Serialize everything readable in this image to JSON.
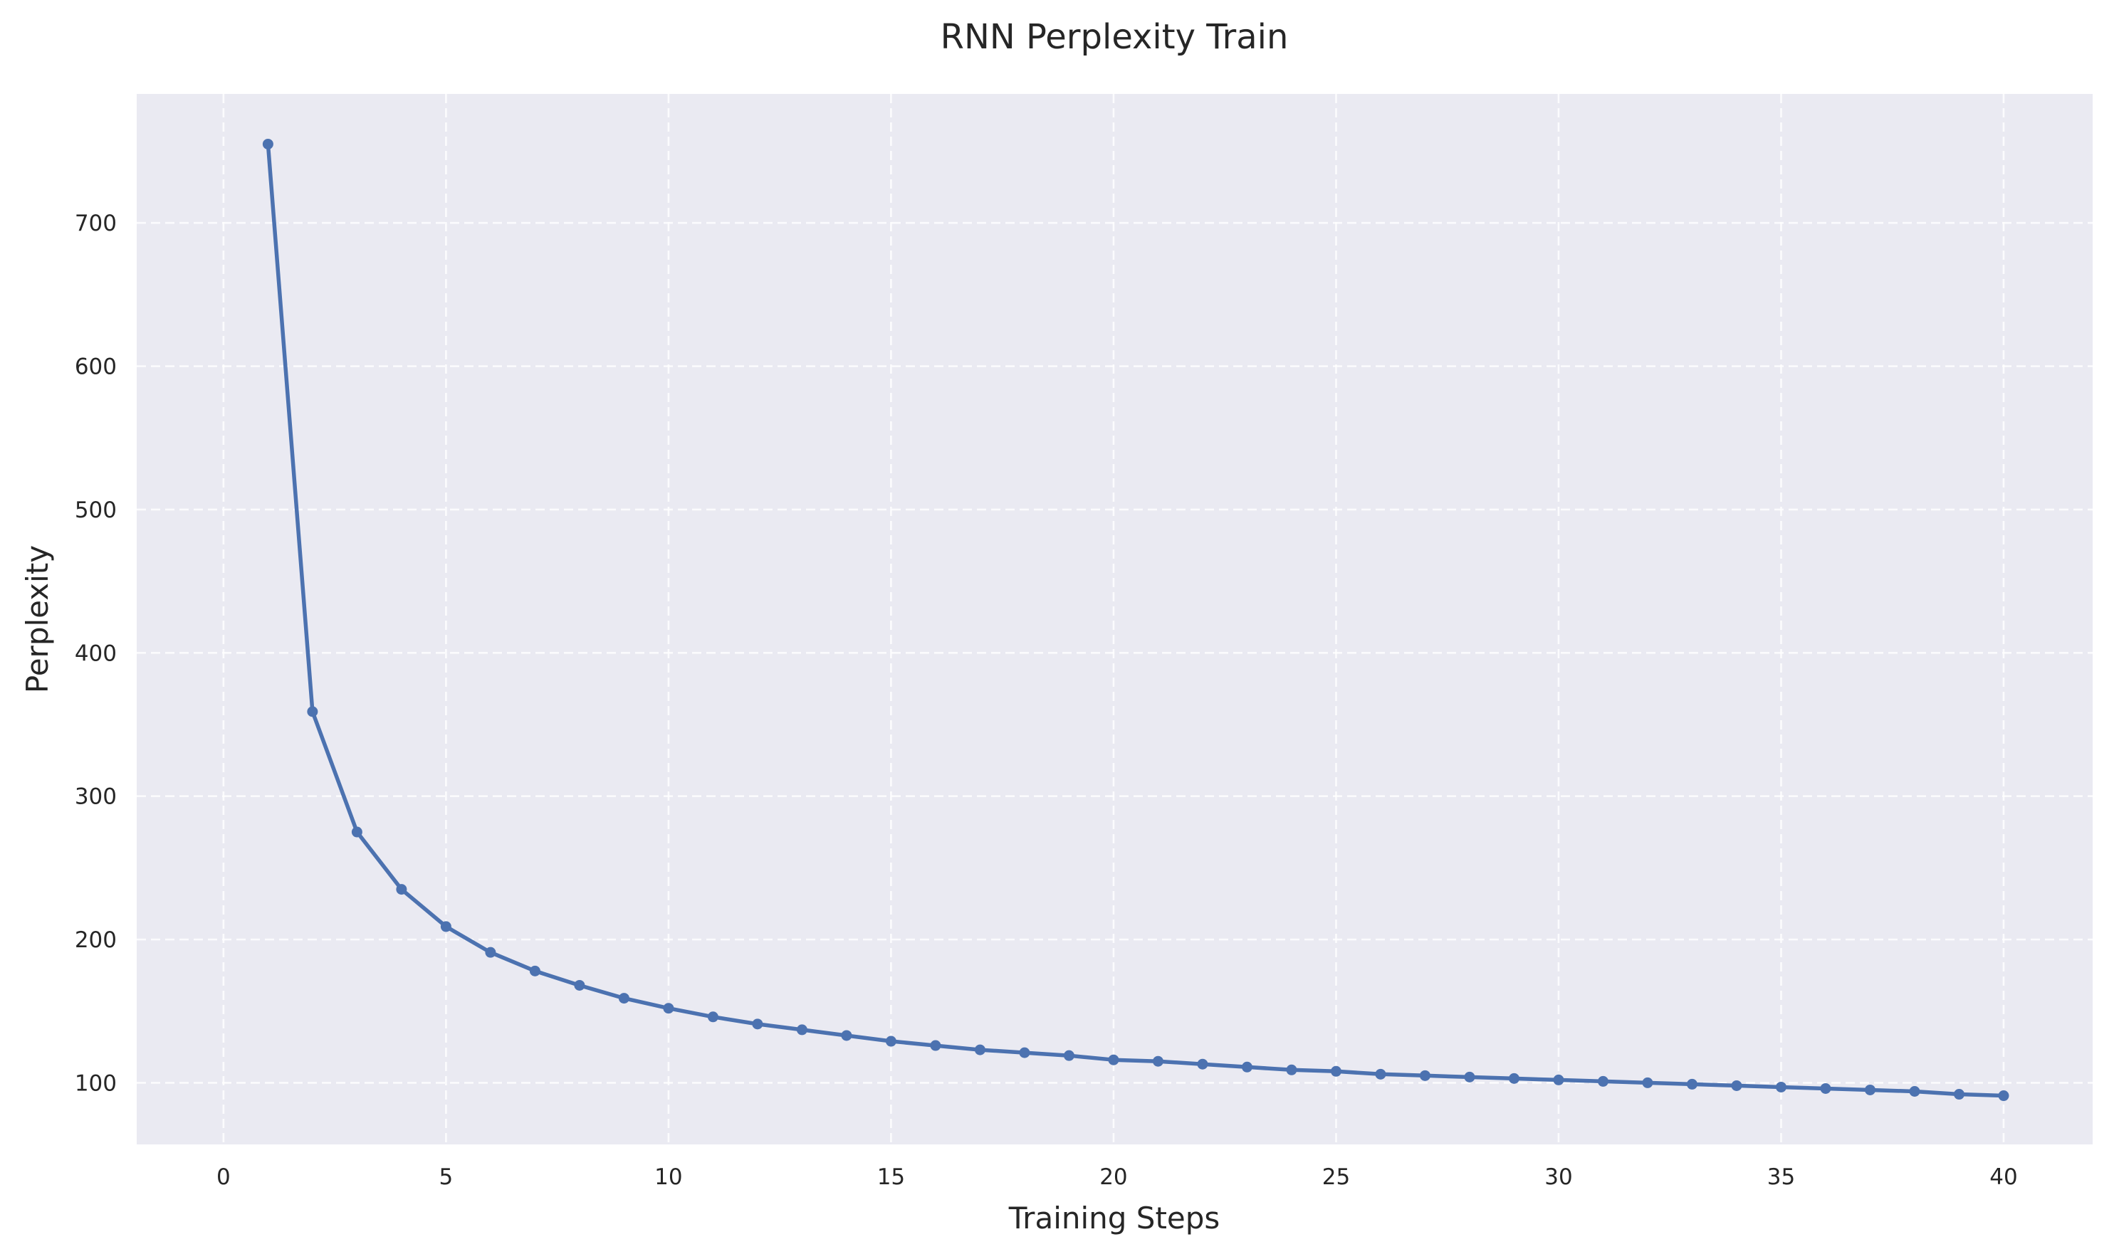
{
  "chart_data": {
    "type": "line",
    "title": "RNN Perplexity Train",
    "xlabel": "Training Steps",
    "ylabel": "Perplexity",
    "xlim": [
      -1.95,
      42.0
    ],
    "ylim": [
      57,
      790
    ],
    "xticks": [
      0,
      5,
      10,
      15,
      20,
      25,
      30,
      35,
      40
    ],
    "yticks": [
      100,
      200,
      300,
      400,
      500,
      600,
      700
    ],
    "grid": true,
    "grid_style": "dashed",
    "background_color": "#EAEAF2",
    "series": [
      {
        "color": "#4C72B0",
        "marker": "circle",
        "x": [
          1,
          2,
          3,
          4,
          5,
          6,
          7,
          8,
          9,
          10,
          11,
          12,
          13,
          14,
          15,
          16,
          17,
          18,
          19,
          20,
          21,
          22,
          23,
          24,
          25,
          26,
          27,
          28,
          29,
          30,
          31,
          32,
          33,
          34,
          35,
          36,
          37,
          38,
          39,
          40
        ],
        "values": [
          755,
          359,
          275,
          235,
          209,
          191,
          178,
          168,
          159,
          152,
          146,
          141,
          137,
          133,
          129,
          126,
          123,
          121,
          119,
          116,
          115,
          113,
          111,
          109,
          108,
          106,
          105,
          104,
          103,
          102,
          101,
          100,
          99,
          98,
          97,
          96,
          95,
          94,
          92,
          91
        ]
      }
    ]
  }
}
